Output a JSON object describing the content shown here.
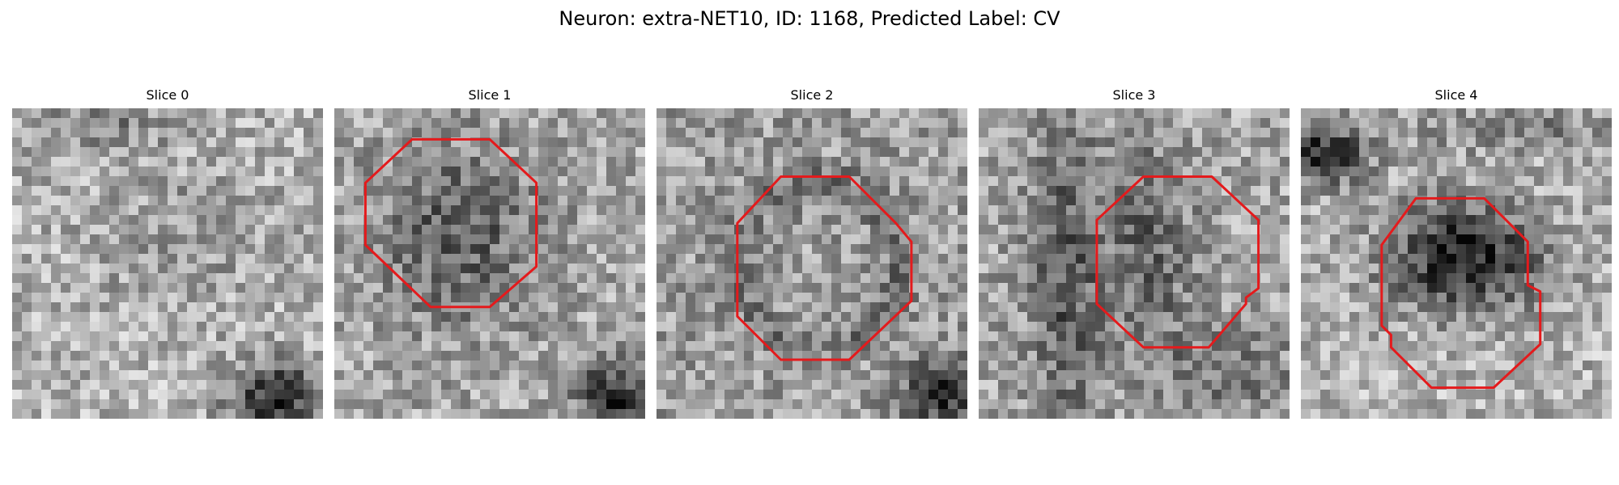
{
  "figure": {
    "title": "Neuron: extra-NET10, ID: 1168, Predicted Label: CV"
  },
  "panels": [
    {
      "title": "Slice 0",
      "has_contour": false,
      "background": "light-texture"
    },
    {
      "title": "Slice 1",
      "has_contour": true,
      "background": "dark-blob-center"
    },
    {
      "title": "Slice 2",
      "has_contour": true,
      "background": "ring-speckle"
    },
    {
      "title": "Slice 3",
      "has_contour": true,
      "background": "dark-vertical-band"
    },
    {
      "title": "Slice 4",
      "has_contour": true,
      "background": "dark-core"
    }
  ],
  "colors": {
    "contour": "#e41a1c",
    "background": "#ffffff"
  },
  "image": {
    "colormap": "grayscale"
  }
}
